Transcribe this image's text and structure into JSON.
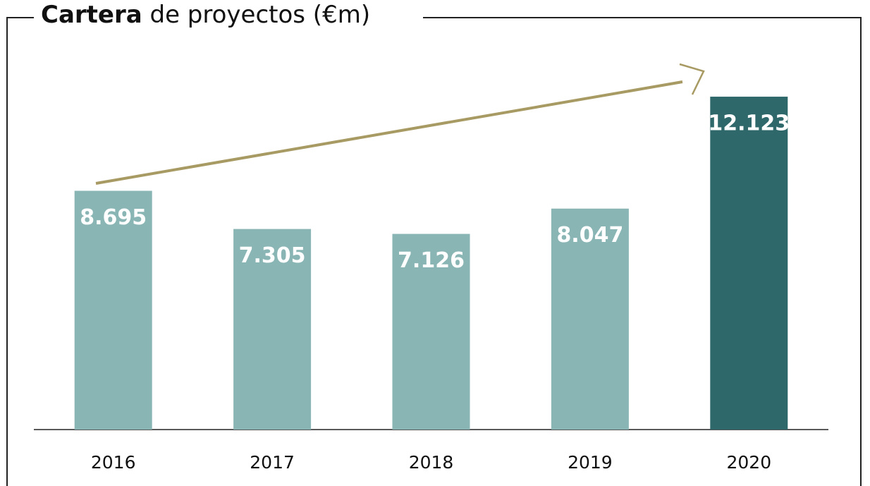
{
  "chart_data": {
    "type": "bar",
    "title": [
      "Cartera",
      "de proyectos (€m)"
    ],
    "categories": [
      "2016",
      "2017",
      "2018",
      "2019",
      "2020"
    ],
    "values": [
      8695,
      7305,
      7126,
      8047,
      12123
    ],
    "value_labels": [
      "8.695",
      "7.305",
      "7.126",
      "8.047",
      "12.123"
    ],
    "colors": [
      "#8ab5b5",
      "#8ab5b5",
      "#8ab5b5",
      "#8ab5b5",
      "#2f686b"
    ],
    "ylim": [
      0,
      14000
    ]
  }
}
